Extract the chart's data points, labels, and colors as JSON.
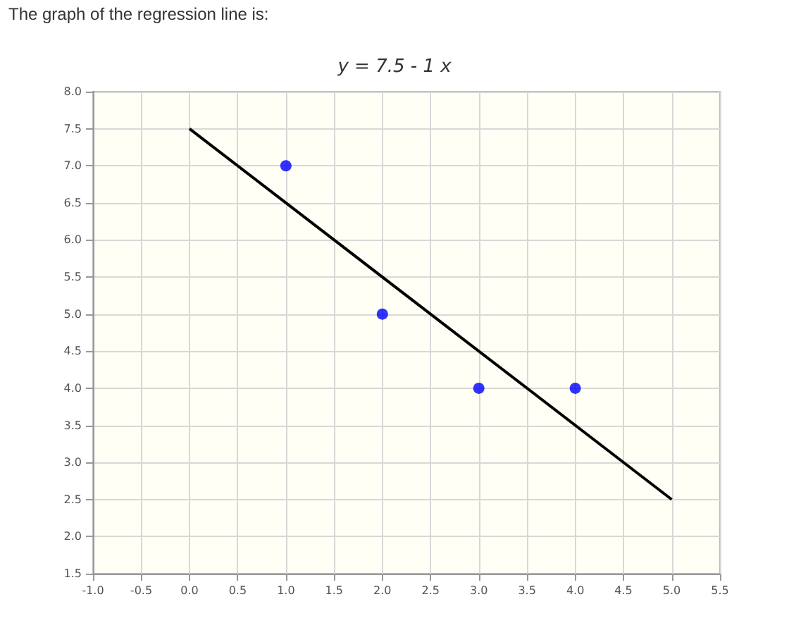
{
  "chart_data": {
    "type": "scatter",
    "title": "y = 7.5 - 1 x",
    "annotations": [
      "The graph of the regression line is:"
    ],
    "series": [
      {
        "color": "#0000ff",
        "marker": "circle",
        "x": [
          1,
          2,
          3,
          4
        ],
        "values": [
          7,
          5,
          4,
          4
        ]
      },
      {
        "type": "line",
        "color": "#000000",
        "marker": "none",
        "x": [
          0,
          5
        ],
        "values": [
          7.5,
          2.5
        ]
      }
    ],
    "xlim": [
      -1,
      5.5
    ],
    "xticks": [
      {
        "value": -1,
        "label": "-1.0"
      },
      {
        "value": -0.5,
        "label": "-0.5"
      },
      {
        "value": 0,
        "label": "0.0"
      },
      {
        "value": 0.5,
        "label": "0.5"
      },
      {
        "value": 1,
        "label": "1.0"
      },
      {
        "value": 1.5,
        "label": "1.5"
      },
      {
        "value": 2,
        "label": "2.0"
      },
      {
        "value": 2.5,
        "label": "2.5"
      },
      {
        "value": 3,
        "label": "3.0"
      },
      {
        "value": 3.5,
        "label": "3.5"
      },
      {
        "value": 4,
        "label": "4.0"
      },
      {
        "value": 4.5,
        "label": "4.5"
      },
      {
        "value": 5,
        "label": "5.0"
      },
      {
        "value": 5.5,
        "label": "5.5"
      }
    ],
    "ylim": [
      1.5,
      8
    ],
    "yticks": [
      {
        "value": 1.5,
        "label": "1.5"
      },
      {
        "value": 2,
        "label": "2.0"
      },
      {
        "value": 2.5,
        "label": "2.5"
      },
      {
        "value": 3,
        "label": "3.0"
      },
      {
        "value": 3.5,
        "label": "3.5"
      },
      {
        "value": 4,
        "label": "4.0"
      },
      {
        "value": 4.5,
        "label": "4.5"
      },
      {
        "value": 5,
        "label": "5.0"
      },
      {
        "value": 5.5,
        "label": "5.5"
      },
      {
        "value": 6,
        "label": "6.0"
      },
      {
        "value": 6.5,
        "label": "6.5"
      },
      {
        "value": 7,
        "label": "7.0"
      },
      {
        "value": 7.5,
        "label": "7.5"
      },
      {
        "value": 8,
        "label": "8.0"
      }
    ],
    "grid": true
  }
}
